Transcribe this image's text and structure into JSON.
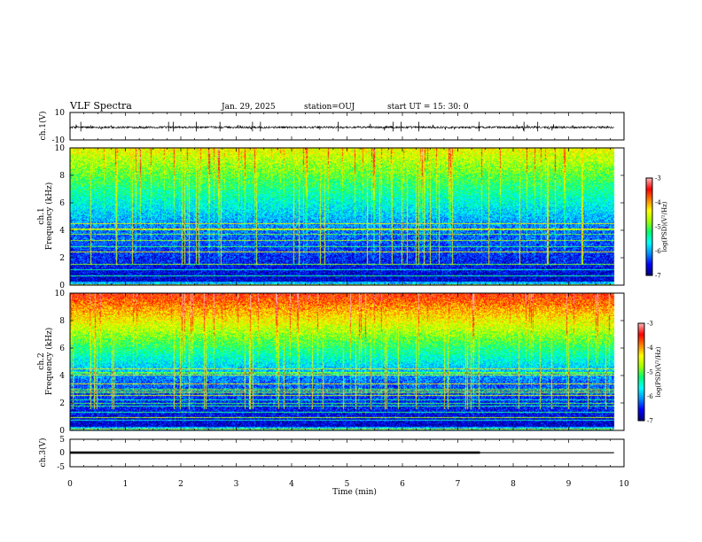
{
  "header": {
    "title": "VLF Spectra",
    "date": "Jan. 29, 2025",
    "station": "station=OUJ",
    "start_ut": "start UT =  15: 30: 0"
  },
  "colors": {
    "frame": "#000000",
    "trace": "#000000",
    "colormap": [
      "#00007a",
      "#0000ff",
      "#0090ff",
      "#00ffff",
      "#00ff70",
      "#a0ff00",
      "#ffff00",
      "#ff8000",
      "#ff0000",
      "#ffb0b0"
    ]
  },
  "chart_data": [
    {
      "type": "line",
      "id": "ch1",
      "ylabel": "ch.1(V)",
      "ylim": [
        -10,
        10
      ],
      "yticks": [
        "10",
        "-10"
      ],
      "xlim": [
        0,
        10
      ],
      "baseline": -0.8,
      "noise_amplitude": 1.5
    },
    {
      "type": "heatmap",
      "id": "ch1_spectrogram",
      "ylabel_top": "ch.1",
      "ylabel": "Frequency (kHz)",
      "ylim": [
        0,
        10
      ],
      "yticks": [
        "0",
        "2",
        "4",
        "6",
        "8",
        "10"
      ],
      "xlim": [
        0,
        10
      ],
      "data_end_min": 9.82,
      "colorbar": {
        "min": -7,
        "max": -3,
        "ticks": [
          "-3",
          "-4",
          "-5",
          "-6",
          "-7"
        ],
        "label": "log(PSD)(V²/Hz)"
      },
      "intensity_gain": 0.0
    },
    {
      "type": "heatmap",
      "id": "ch2_spectrogram",
      "ylabel_top": "ch.2",
      "ylabel": "Frequency (kHz)",
      "ylim": [
        0,
        10
      ],
      "yticks": [
        "0",
        "2",
        "4",
        "6",
        "8",
        "10"
      ],
      "xlim": [
        0,
        10
      ],
      "data_end_min": 9.82,
      "colorbar": {
        "min": -7,
        "max": -3,
        "ticks": [
          "-3",
          "-4",
          "-5",
          "-6",
          "-7"
        ],
        "label": "log(PSD)(V²/Hz)"
      },
      "intensity_gain": 0.22
    },
    {
      "type": "line",
      "id": "ch3",
      "ylabel": "ch.3(V)",
      "ylim": [
        -5,
        5
      ],
      "yticks": [
        "5",
        "0",
        "-5"
      ],
      "xlim": [
        0,
        10
      ],
      "segments": [
        {
          "x": [
            0,
            7.4
          ],
          "y": 0.15,
          "weight": "thick"
        },
        {
          "x": [
            7.4,
            9.82
          ],
          "y": 0.1,
          "weight": "thin"
        }
      ]
    }
  ],
  "xaxis": {
    "label": "Time (min)",
    "ticks": [
      "0",
      "1",
      "2",
      "3",
      "4",
      "5",
      "6",
      "7",
      "8",
      "9",
      "10"
    ]
  }
}
